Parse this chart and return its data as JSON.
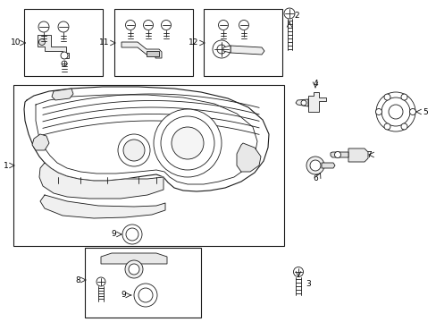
{
  "background_color": "#ffffff",
  "line_color": "#1a1a1a",
  "label_color": "#000000",
  "fig_width": 4.89,
  "fig_height": 3.6,
  "dpi": 100,
  "boxes": {
    "main": [
      15,
      85,
      290,
      185
    ],
    "b10": [
      27,
      5,
      88,
      80
    ],
    "b11": [
      128,
      5,
      88,
      80
    ],
    "b12": [
      228,
      5,
      88,
      80
    ]
  }
}
